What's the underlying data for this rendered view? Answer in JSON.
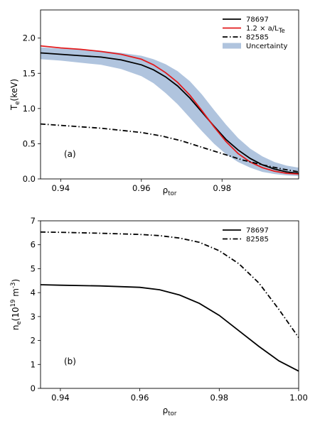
{
  "chart_data": [
    {
      "type": "line",
      "panel_label": "(a)",
      "ylabel": "T_e(keV)",
      "xlabel": "ρ_tor",
      "xlim": [
        0.935,
        0.999
      ],
      "ylim": [
        0.0,
        2.4
      ],
      "xticks": [
        0.94,
        0.96,
        0.98
      ],
      "xtick_labels": [
        "0.94",
        "0.96",
        "0.98"
      ],
      "yticks": [
        0.0,
        0.5,
        1.0,
        1.5,
        2.0
      ],
      "ytick_labels": [
        "0.0",
        "0.5",
        "1.0",
        "1.5",
        "2.0"
      ],
      "legend_position": "top-right",
      "series": [
        {
          "name": "78697",
          "color": "#000000",
          "style": "solid",
          "x": [
            0.935,
            0.94,
            0.945,
            0.95,
            0.955,
            0.96,
            0.963,
            0.966,
            0.969,
            0.972,
            0.975,
            0.978,
            0.981,
            0.984,
            0.987,
            0.99,
            0.993,
            0.996,
            0.999
          ],
          "y": [
            1.79,
            1.77,
            1.75,
            1.73,
            1.69,
            1.62,
            1.55,
            1.45,
            1.32,
            1.15,
            0.95,
            0.75,
            0.56,
            0.41,
            0.29,
            0.2,
            0.14,
            0.1,
            0.08
          ]
        },
        {
          "name": "1.2 × a/L_Te",
          "color": "#e31a1c",
          "style": "solid",
          "x": [
            0.935,
            0.94,
            0.945,
            0.95,
            0.955,
            0.96,
            0.963,
            0.966,
            0.969,
            0.972,
            0.975,
            0.978,
            0.981,
            0.984,
            0.987,
            0.99,
            0.993,
            0.996,
            0.999
          ],
          "y": [
            1.89,
            1.86,
            1.84,
            1.81,
            1.77,
            1.7,
            1.62,
            1.51,
            1.37,
            1.19,
            0.97,
            0.74,
            0.53,
            0.36,
            0.24,
            0.16,
            0.11,
            0.08,
            0.07
          ]
        },
        {
          "name": "82585",
          "color": "#000000",
          "style": "dashdot",
          "x": [
            0.935,
            0.94,
            0.95,
            0.96,
            0.965,
            0.97,
            0.975,
            0.98,
            0.985,
            0.99,
            0.995,
            0.999
          ],
          "y": [
            0.78,
            0.76,
            0.72,
            0.66,
            0.61,
            0.54,
            0.45,
            0.36,
            0.27,
            0.2,
            0.14,
            0.1
          ]
        }
      ],
      "band": {
        "name": "Uncertainty",
        "color": "#b0c4de",
        "x": [
          0.935,
          0.94,
          0.945,
          0.95,
          0.955,
          0.96,
          0.963,
          0.966,
          0.969,
          0.972,
          0.975,
          0.978,
          0.981,
          0.984,
          0.987,
          0.99,
          0.993,
          0.996,
          0.999
        ],
        "lower": [
          1.7,
          1.68,
          1.65,
          1.62,
          1.56,
          1.46,
          1.36,
          1.22,
          1.06,
          0.87,
          0.68,
          0.5,
          0.35,
          0.24,
          0.16,
          0.1,
          0.07,
          0.05,
          0.04
        ],
        "upper": [
          1.87,
          1.85,
          1.84,
          1.82,
          1.79,
          1.75,
          1.7,
          1.63,
          1.53,
          1.39,
          1.2,
          0.98,
          0.77,
          0.58,
          0.43,
          0.32,
          0.24,
          0.19,
          0.16
        ]
      }
    },
    {
      "type": "line",
      "panel_label": "(b)",
      "ylabel": "n_e(10^19 m^-3)",
      "xlabel": "ρ_tor",
      "xlim": [
        0.935,
        1.0
      ],
      "ylim": [
        0,
        7
      ],
      "xticks": [
        0.94,
        0.96,
        0.98,
        1.0
      ],
      "xtick_labels": [
        "0.94",
        "0.96",
        "0.98",
        "1.00"
      ],
      "yticks": [
        0,
        1,
        2,
        3,
        4,
        5,
        6,
        7
      ],
      "ytick_labels": [
        "0",
        "1",
        "2",
        "3",
        "4",
        "5",
        "6",
        "7"
      ],
      "legend_position": "top-right",
      "series": [
        {
          "name": "78697",
          "color": "#000000",
          "style": "solid",
          "x": [
            0.935,
            0.94,
            0.95,
            0.96,
            0.965,
            0.97,
            0.975,
            0.98,
            0.985,
            0.99,
            0.995,
            1.0
          ],
          "y": [
            4.33,
            4.31,
            4.28,
            4.22,
            4.12,
            3.9,
            3.55,
            3.05,
            2.4,
            1.75,
            1.15,
            0.72
          ]
        },
        {
          "name": "82585",
          "color": "#000000",
          "style": "dashdot",
          "x": [
            0.935,
            0.94,
            0.95,
            0.96,
            0.965,
            0.97,
            0.975,
            0.98,
            0.985,
            0.99,
            0.995,
            1.0
          ],
          "y": [
            6.53,
            6.52,
            6.48,
            6.43,
            6.38,
            6.28,
            6.1,
            5.75,
            5.2,
            4.4,
            3.3,
            2.12
          ]
        }
      ]
    }
  ]
}
